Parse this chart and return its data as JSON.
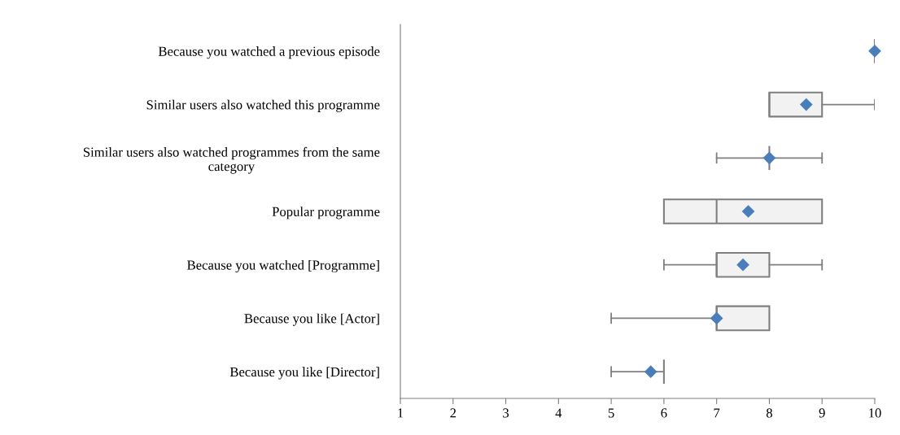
{
  "chart_data": {
    "type": "box",
    "orientation": "horizontal",
    "marker": "diamond",
    "categories": [
      "Because you watched a previous episode",
      "Similar users also watched this programme",
      "Similar users also watched programmes from the same category",
      "Popular programme",
      "Because you watched [Programme]",
      "Because you like [Actor]",
      "Because you like [Director]"
    ],
    "boxes": [
      {
        "low": 10,
        "q1": 10,
        "median": 10,
        "q3": 10,
        "high": 10,
        "mean": 10
      },
      {
        "low": 8,
        "q1": 8,
        "median": 8,
        "q3": 9,
        "high": 10,
        "mean": 8.7
      },
      {
        "low": 7,
        "q1": 8,
        "median": 8,
        "q3": 8,
        "high": 9,
        "mean": 8
      },
      {
        "low": 6,
        "q1": 6,
        "median": 7,
        "q3": 9,
        "high": 9,
        "mean": 7.6
      },
      {
        "low": 6,
        "q1": 7,
        "median": 7,
        "q3": 8,
        "high": 9,
        "mean": 7.5
      },
      {
        "low": 5,
        "q1": 7,
        "median": 7,
        "q3": 8,
        "high": 8,
        "mean": 7
      },
      {
        "low": 5,
        "q1": 6,
        "median": 6,
        "q3": 6,
        "high": 6,
        "mean": 5.75
      }
    ],
    "xlim": [
      1,
      10
    ],
    "xticks": [
      1,
      2,
      3,
      4,
      5,
      6,
      7,
      8,
      9,
      10
    ],
    "grid": false
  }
}
